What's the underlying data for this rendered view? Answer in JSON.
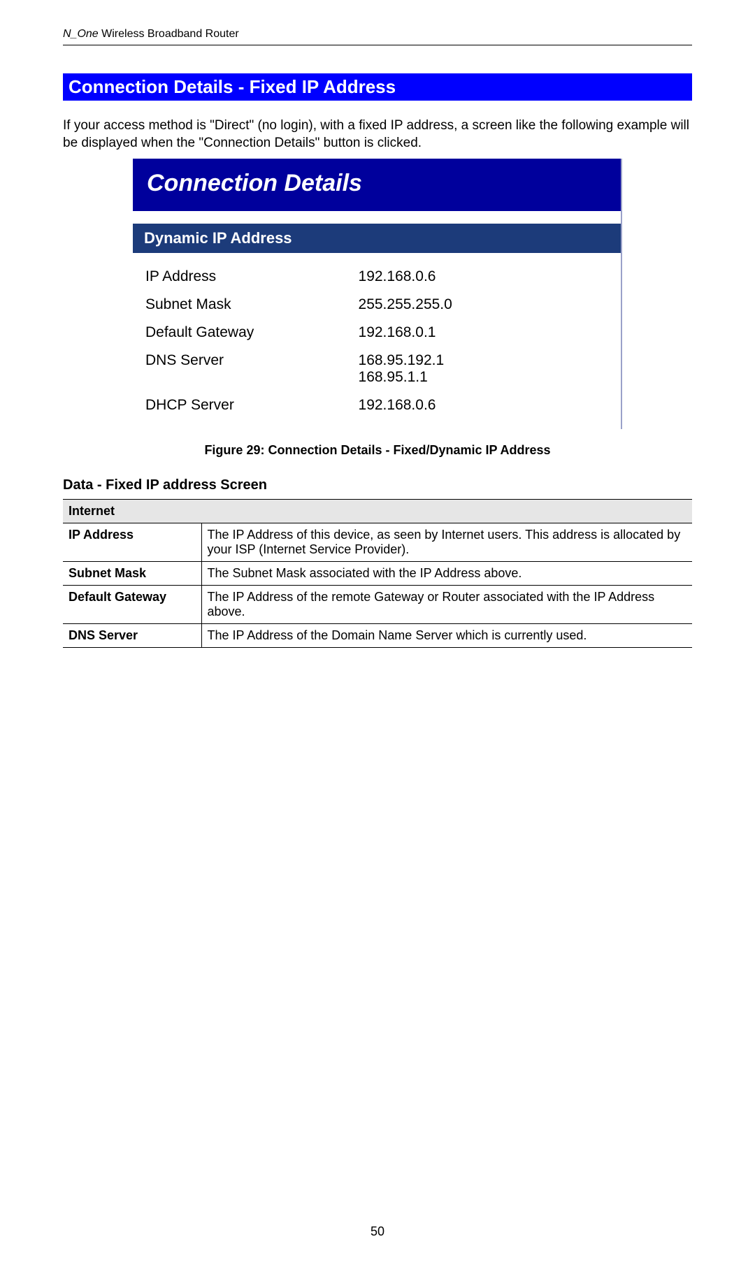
{
  "header": {
    "product": "N_One",
    "rest": " Wireless Broadband Router"
  },
  "section_title": "Connection Details - Fixed IP Address",
  "intro_text": "If your access method is \"Direct\" (no login), with a fixed IP address, a screen like the following example will be displayed when the \"Connection Details\" button is clicked.",
  "figure": {
    "title": "Connection Details",
    "subheader": "Dynamic IP Address",
    "rows": [
      {
        "label": "IP Address",
        "value": "192.168.0.6"
      },
      {
        "label": "Subnet Mask",
        "value": "255.255.255.0"
      },
      {
        "label": "Default Gateway",
        "value": "192.168.0.1"
      },
      {
        "label": "DNS Server",
        "value": "168.95.192.1\n168.95.1.1"
      },
      {
        "label": "DHCP Server",
        "value": "192.168.0.6"
      }
    ],
    "caption": "Figure 29: Connection Details - Fixed/Dynamic IP Address",
    "colors": {
      "title_bg": "#00009c",
      "sub_bg": "#1c3b7a",
      "border": "#9aa1c9"
    }
  },
  "subsection_title": "Data - Fixed IP address Screen",
  "table": {
    "section_header": "Internet",
    "rows": [
      {
        "label": "IP Address",
        "desc": "The IP Address of this device, as seen by Internet users. This address is allocated by your ISP (Internet Service Provider)."
      },
      {
        "label": "Subnet Mask",
        "desc": "The Subnet Mask associated with the IP Address above."
      },
      {
        "label": "Default Gateway",
        "desc": "The IP Address of the remote Gateway or Router associated with the IP Address above."
      },
      {
        "label": "DNS Server",
        "desc": "The IP Address of the Domain Name Server which is currently used."
      }
    ]
  },
  "page_number": "50"
}
